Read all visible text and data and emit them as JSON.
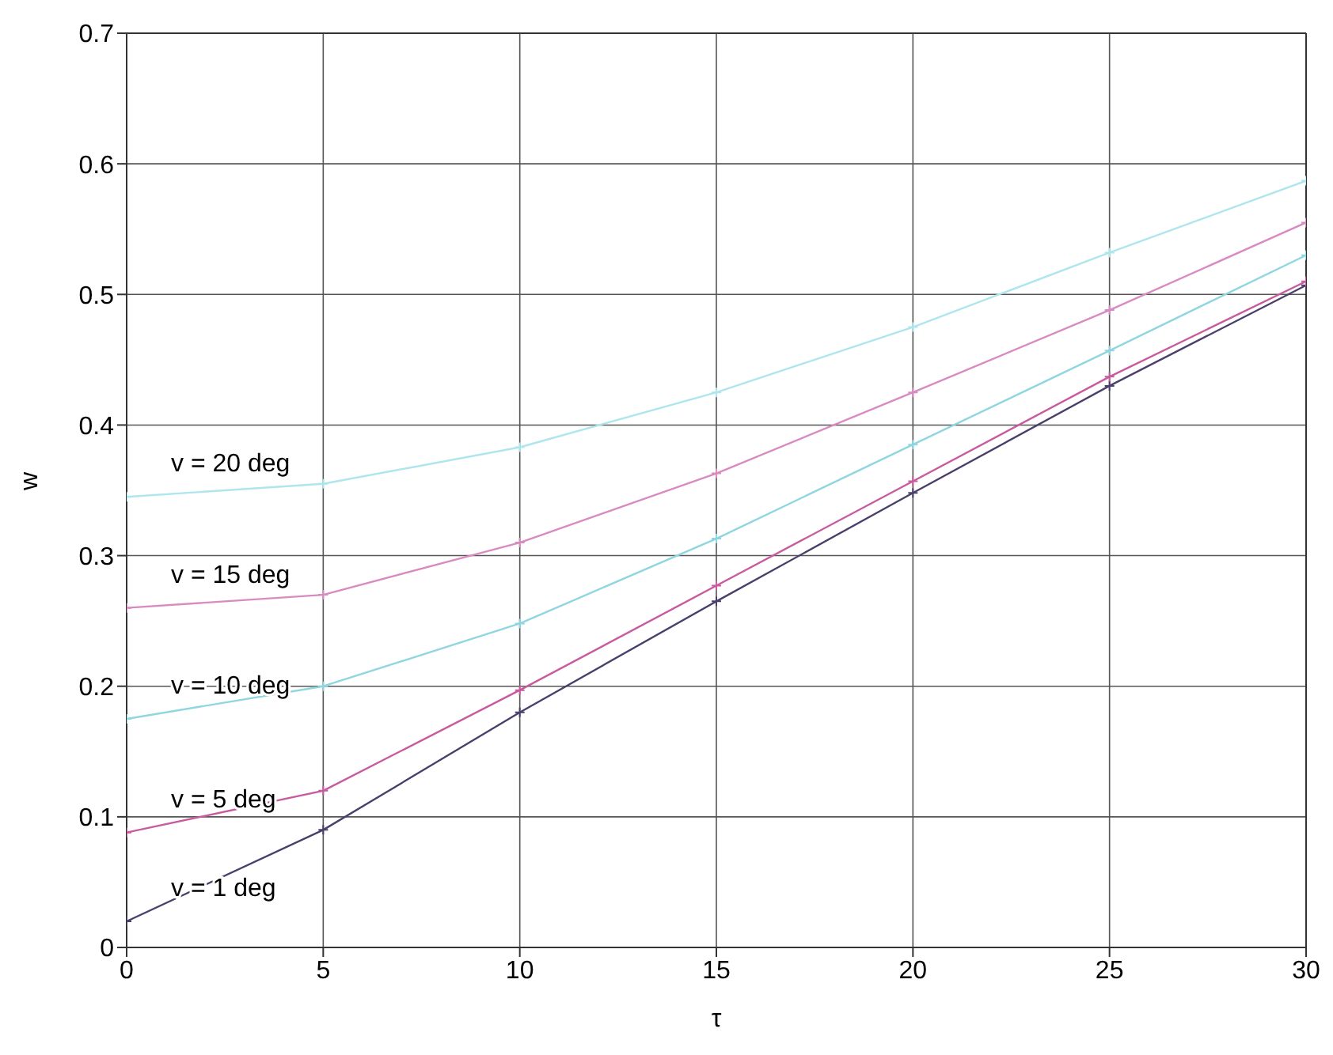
{
  "chart_data": {
    "type": "line",
    "xlabel": "τ",
    "ylabel": "w",
    "x": [
      0,
      5,
      10,
      15,
      20,
      25,
      30
    ],
    "series": [
      {
        "name": "v = 1 deg",
        "color": "#4a3f6b",
        "values": [
          0.02,
          0.09,
          0.18,
          0.265,
          0.348,
          0.43,
          0.507
        ]
      },
      {
        "name": "v = 5 deg",
        "color": "#c85a9e",
        "values": [
          0.088,
          0.12,
          0.197,
          0.277,
          0.357,
          0.437,
          0.51
        ]
      },
      {
        "name": "v = 10 deg",
        "color": "#8fd6e0",
        "values": [
          0.175,
          0.2,
          0.248,
          0.313,
          0.385,
          0.457,
          0.53
        ]
      },
      {
        "name": "v = 15 deg",
        "color": "#d98ac0",
        "values": [
          0.26,
          0.27,
          0.31,
          0.363,
          0.425,
          0.488,
          0.555
        ]
      },
      {
        "name": "v = 20 deg",
        "color": "#aee6ee",
        "values": [
          0.345,
          0.355,
          0.383,
          0.425,
          0.475,
          0.532,
          0.587
        ]
      }
    ],
    "xlim": [
      0,
      30
    ],
    "xticks": [
      0,
      5,
      10,
      15,
      20,
      25,
      30
    ],
    "ylim": [
      0,
      0.7
    ],
    "yticks": [
      0,
      0.1,
      0.2,
      0.3,
      0.4,
      0.5,
      0.6,
      0.7
    ],
    "grid": true,
    "legend": false,
    "marker": "cross",
    "line_style": "solid"
  }
}
